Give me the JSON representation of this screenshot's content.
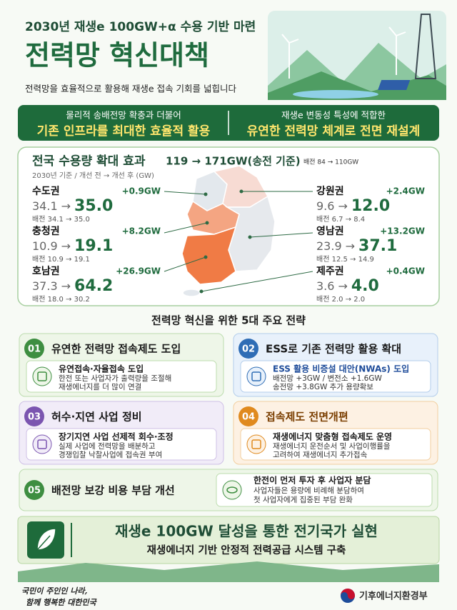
{
  "header": {
    "subtitle": "2030년 재생e 100GW+α 수용 기반 마련",
    "title": "전력망 혁신대책",
    "description": "전력망을 효율적으로 활용해 재생e 접속 기회를 넓힙니다"
  },
  "banner": [
    {
      "line1": "물리적 송배전망 확충과 더불어",
      "line2": "기존 인프라를 최대한 효율적 활용"
    },
    {
      "line1": "재생e 변동성 특성에 적합한",
      "line2": "유연한 전력망 체계로 전면 재설계"
    }
  ],
  "capacity": {
    "title": "전국 수용량 확대 효과",
    "total": "119 → 171GW(송전 기준)",
    "distribution": "배전 84 → 110GW",
    "note": "2030년 기준 / 개선 전 → 개선 후 (GW)",
    "arrow": "→",
    "regions": [
      {
        "name": "수도권",
        "increase": "+0.9GW",
        "before": "34.1",
        "after": "35.0",
        "distribution": "배전 34.1 → 35.0"
      },
      {
        "name": "충청권",
        "increase": "+8.2GW",
        "before": "10.9",
        "after": "19.1",
        "distribution": "배전 10.9 → 19.1"
      },
      {
        "name": "호남권",
        "increase": "+26.9GW",
        "before": "37.3",
        "after": "64.2",
        "distribution": "배전 18.0 → 30.2"
      },
      {
        "name": "강원권",
        "increase": "+2.4GW",
        "before": "9.6",
        "after": "12.0",
        "distribution": "배전 6.7 → 8.4"
      },
      {
        "name": "영남권",
        "increase": "+13.2GW",
        "before": "23.9",
        "after": "37.1",
        "distribution": "배전 12.5 → 14.9"
      },
      {
        "name": "제주권",
        "increase": "+0.4GW",
        "before": "3.6",
        "after": "4.0",
        "distribution": "배전 2.0 → 2.0"
      }
    ]
  },
  "strategies": {
    "title": "전력망 혁신을 위한 5대 주요 전략",
    "items": [
      {
        "number": "01",
        "title": "유연한 전력망 접속제도 도입",
        "detail_title": "유연접속·자율접속 도입",
        "lines": [
          "한전 또는 사업자가 출력량을 조절해",
          "재생에너지를 더 많이 연결"
        ]
      },
      {
        "number": "02",
        "title": "ESS로 기존 전력망 활용 확대",
        "detail_title": "ESS 활용 비증설 대안(NWAs) 도입",
        "lines": [
          "배전망 +3GW / 변전소 +1.6GW",
          "송전망 +3.8GW 추가 용량확보"
        ]
      },
      {
        "number": "03",
        "title": "허수·지연 사업 정비",
        "detail_title": "장기지연 사업 선제적 회수·조정",
        "lines": [
          "실제 사업에 전력망을 배분하고",
          "경쟁입찰 낙찰사업에 접속권 부여"
        ]
      },
      {
        "number": "04",
        "title": "접속제도 전면개편",
        "detail_title": "재생에너지 맞춤형 접속제도 운영",
        "lines": [
          "재생에너지 운전순서 및 사업이행률을",
          "고려하여 재생에너지 추가접속"
        ]
      },
      {
        "number": "05",
        "title": "배전망 보강 비용 부담 개선",
        "detail_title": "한전이 먼저 투자 후 사업자 분담",
        "lines": [
          "사업자들은 용량에 비례해 분담하여",
          "첫 사업자에게 집중된 부담 완화"
        ]
      }
    ]
  },
  "conclusion": {
    "title": "재생e 100GW 달성을 통한 전기국가 실현",
    "subtitle": "재생에너지 기반 안정적 전력공급 시스템 구축"
  },
  "footer": {
    "slogan": [
      "국민이 주인인 나라,",
      "함께 행복한 대한민국"
    ],
    "ministry": "기후에너지환경부"
  }
}
